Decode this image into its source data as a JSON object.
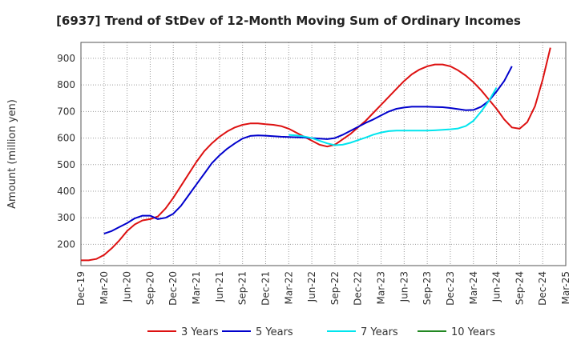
{
  "chart_data": {
    "type": "line",
    "title": "[6937]  Trend of StDev of 12-Month Moving Sum of Ordinary Incomes",
    "xlabel": "",
    "ylabel": "Amount (million yen)",
    "ylim": [
      120,
      960
    ],
    "yticks": [
      200,
      300,
      400,
      500,
      600,
      700,
      800,
      900
    ],
    "xticks": [
      "Dec-19",
      "Mar-20",
      "Jun-20",
      "Sep-20",
      "Dec-20",
      "Mar-21",
      "Jun-21",
      "Sep-21",
      "Dec-21",
      "Mar-22",
      "Jun-22",
      "Sep-22",
      "Dec-22",
      "Mar-23",
      "Jun-23",
      "Sep-23",
      "Dec-23",
      "Mar-24",
      "Jun-24",
      "Sep-24",
      "Dec-24",
      "Mar-25"
    ],
    "x_start": "Dec-19",
    "grid": true,
    "legend_position": "bottom",
    "series": [
      {
        "name": "3 Years",
        "color": "#dd1111",
        "start_index": 0,
        "values": [
          140,
          140,
          145,
          160,
          185,
          215,
          250,
          275,
          290,
          295,
          305,
          335,
          375,
          420,
          465,
          510,
          550,
          580,
          605,
          625,
          640,
          650,
          655,
          655,
          652,
          650,
          645,
          635,
          620,
          605,
          590,
          575,
          568,
          575,
          595,
          615,
          640,
          665,
          695,
          725,
          755,
          785,
          815,
          840,
          858,
          870,
          877,
          877,
          870,
          855,
          835,
          810,
          780,
          745,
          710,
          670,
          640,
          635,
          660,
          720,
          820,
          940
        ]
      },
      {
        "name": "5 Years",
        "color": "#0000cc",
        "start_index": 3,
        "values": [
          240,
          250,
          265,
          280,
          298,
          308,
          308,
          295,
          300,
          315,
          345,
          385,
          425,
          465,
          505,
          535,
          560,
          580,
          598,
          608,
          610,
          609,
          607,
          605,
          604,
          603,
          602,
          600,
          598,
          596,
          600,
          612,
          627,
          642,
          657,
          670,
          685,
          700,
          710,
          715,
          718,
          718,
          718,
          717,
          716,
          713,
          709,
          705,
          706,
          718,
          740,
          775,
          815,
          870
        ]
      },
      {
        "name": "7 Years",
        "color": "#00e5ee",
        "start_index": 27,
        "values": [
          612,
          610,
          606,
          600,
          590,
          580,
          573,
          575,
          582,
          592,
          602,
          613,
          621,
          626,
          628,
          628,
          628,
          628,
          628,
          629,
          631,
          633,
          636,
          645,
          665,
          700,
          740,
          790
        ]
      },
      {
        "name": "10 Years",
        "color": "#228822",
        "start_index": 0,
        "values": []
      }
    ]
  }
}
